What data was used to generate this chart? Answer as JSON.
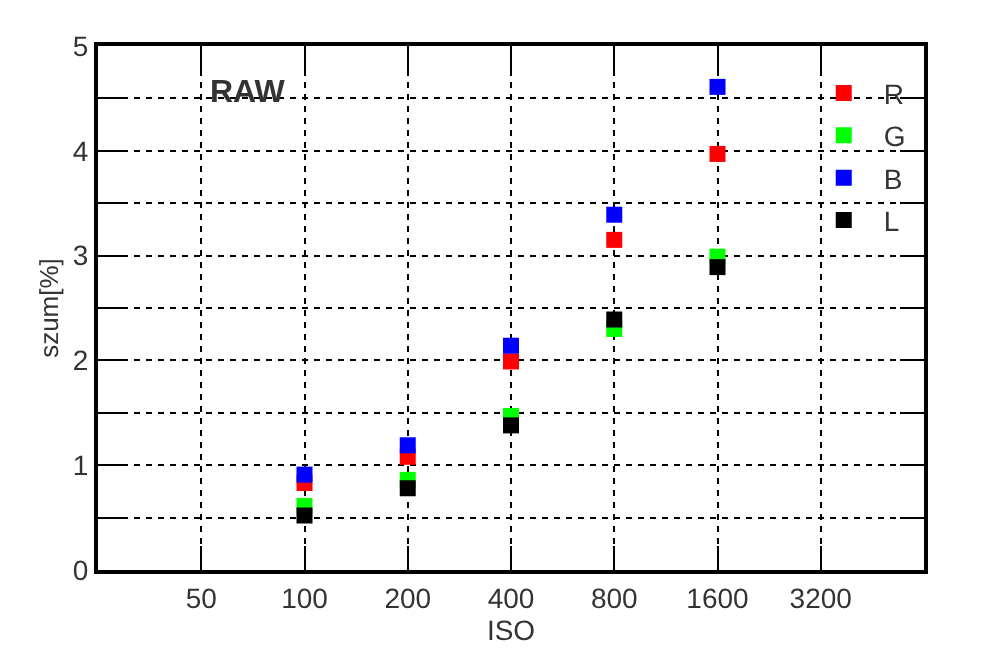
{
  "chart_data": {
    "type": "scatter",
    "xlabel": "ISO",
    "ylabel": "szum[%]",
    "annotations": [
      "RAW"
    ],
    "x": [
      100,
      200,
      400,
      800,
      1600
    ],
    "series": [
      {
        "name": "R",
        "color": "#ff0000",
        "values": [
          0.83,
          1.08,
          1.99,
          3.15,
          3.97
        ]
      },
      {
        "name": "G",
        "color": "#00ff00",
        "values": [
          0.61,
          0.86,
          1.47,
          2.3,
          2.99
        ]
      },
      {
        "name": "B",
        "color": "#0000ff",
        "values": [
          0.91,
          1.19,
          2.14,
          3.39,
          4.61
        ]
      },
      {
        "name": "L",
        "color": "#000000",
        "values": [
          0.52,
          0.78,
          1.38,
          2.39,
          2.89
        ]
      }
    ],
    "log": "x",
    "xlim": [
      25,
      6400
    ],
    "xticks": [
      50,
      100,
      200,
      400,
      800,
      1600,
      3200
    ],
    "ylim": [
      0,
      5
    ],
    "yticks": [
      0,
      {
        "value": 0.5,
        "label": null
      },
      1,
      {
        "value": 1.5,
        "label": null
      },
      2,
      {
        "value": 2.5,
        "label": null
      },
      3,
      {
        "value": 3.5,
        "label": null
      },
      4,
      {
        "value": 4.5,
        "label": null
      },
      5
    ],
    "grid": true,
    "legend": "top right",
    "marker": "square"
  }
}
